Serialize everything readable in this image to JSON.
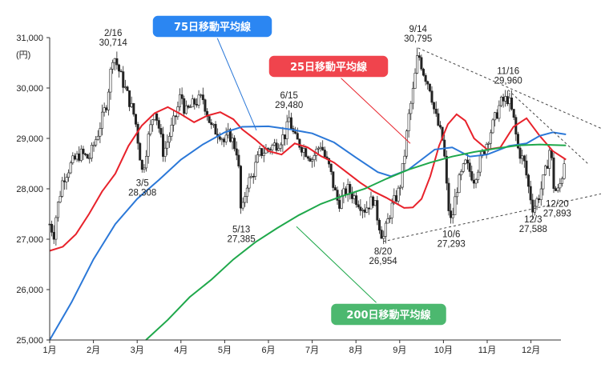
{
  "chart_data": {
    "type": "line",
    "unit_label": "(円)",
    "y_ticks": [
      "31,000",
      "30,000",
      "29,000",
      "28,000",
      "27,000",
      "26,000",
      "25,000"
    ],
    "ylim": [
      25000,
      31000
    ],
    "x_ticks": [
      "1月",
      "2月",
      "3月",
      "4月",
      "5月",
      "6月",
      "7月",
      "8月",
      "9月",
      "10月",
      "11月",
      "12月"
    ],
    "grid": false,
    "series": [
      {
        "name": "25日移動平均線",
        "color": "#e8222b",
        "values": [
          [
            0,
            26770
          ],
          [
            0.3,
            26850
          ],
          [
            0.6,
            27100
          ],
          [
            0.9,
            27500
          ],
          [
            1.2,
            27950
          ],
          [
            1.5,
            28300
          ],
          [
            1.8,
            28850
          ],
          [
            2.1,
            29250
          ],
          [
            2.4,
            29500
          ],
          [
            2.7,
            29620
          ],
          [
            3.0,
            29480
          ],
          [
            3.3,
            29320
          ],
          [
            3.6,
            29450
          ],
          [
            3.9,
            29520
          ],
          [
            4.2,
            29380
          ],
          [
            4.4,
            29180
          ],
          [
            4.7,
            28980
          ],
          [
            5.0,
            28750
          ],
          [
            5.3,
            28680
          ],
          [
            5.6,
            28900
          ],
          [
            5.9,
            28820
          ],
          [
            6.2,
            28650
          ],
          [
            6.5,
            28520
          ],
          [
            6.8,
            28320
          ],
          [
            7.1,
            28120
          ],
          [
            7.4,
            27950
          ],
          [
            7.7,
            27820
          ],
          [
            7.9,
            27720
          ],
          [
            8.1,
            27620
          ],
          [
            8.3,
            27630
          ],
          [
            8.5,
            27800
          ],
          [
            8.7,
            28250
          ],
          [
            8.9,
            28850
          ],
          [
            9.1,
            29280
          ],
          [
            9.3,
            29480
          ],
          [
            9.5,
            29350
          ],
          [
            9.7,
            29000
          ],
          [
            10.0,
            28780
          ],
          [
            10.3,
            28820
          ],
          [
            10.6,
            29230
          ],
          [
            10.9,
            29400
          ],
          [
            11.2,
            29050
          ],
          [
            11.5,
            28750
          ],
          [
            11.8,
            28580
          ]
        ]
      },
      {
        "name": "75日移動平均線",
        "color": "#2b78d8",
        "values": [
          [
            0,
            25000
          ],
          [
            0.5,
            25750
          ],
          [
            1.0,
            26600
          ],
          [
            1.5,
            27300
          ],
          [
            2.0,
            27800
          ],
          [
            2.5,
            28180
          ],
          [
            3.0,
            28580
          ],
          [
            3.5,
            28880
          ],
          [
            4.0,
            29120
          ],
          [
            4.4,
            29230
          ],
          [
            5.0,
            29240
          ],
          [
            5.5,
            29180
          ],
          [
            6.0,
            29100
          ],
          [
            6.5,
            28920
          ],
          [
            7.0,
            28620
          ],
          [
            7.5,
            28330
          ],
          [
            7.8,
            28250
          ],
          [
            8.2,
            28380
          ],
          [
            8.5,
            28580
          ],
          [
            8.8,
            28780
          ],
          [
            9.2,
            28820
          ],
          [
            9.6,
            28640
          ],
          [
            10.0,
            28680
          ],
          [
            10.5,
            28850
          ],
          [
            10.9,
            28900
          ],
          [
            11.2,
            29050
          ],
          [
            11.5,
            29120
          ],
          [
            11.8,
            29080
          ]
        ]
      },
      {
        "name": "200日移動平均線",
        "color": "#1fa84b",
        "values": [
          [
            2.2,
            25000
          ],
          [
            2.7,
            25400
          ],
          [
            3.2,
            25850
          ],
          [
            3.7,
            26200
          ],
          [
            4.2,
            26600
          ],
          [
            4.7,
            26940
          ],
          [
            5.2,
            27220
          ],
          [
            5.7,
            27480
          ],
          [
            6.2,
            27700
          ],
          [
            6.7,
            27860
          ],
          [
            7.2,
            28000
          ],
          [
            7.7,
            28200
          ],
          [
            8.2,
            28380
          ],
          [
            8.7,
            28520
          ],
          [
            9.2,
            28640
          ],
          [
            9.7,
            28730
          ],
          [
            10.2,
            28800
          ],
          [
            10.7,
            28860
          ],
          [
            11.2,
            28880
          ],
          [
            11.5,
            28870
          ],
          [
            11.8,
            28860
          ]
        ]
      }
    ],
    "annotations": [
      {
        "date": "2/16",
        "value": "30,714",
        "x": 1.45,
        "y": 30714
      },
      {
        "date": "3/5",
        "value": "28,308",
        "x": 2.12,
        "y": 28308
      },
      {
        "date": "5/13",
        "value": "27,385",
        "x": 4.38,
        "y": 27385
      },
      {
        "date": "6/15",
        "value": "29,480",
        "x": 5.47,
        "y": 29480
      },
      {
        "date": "8/20",
        "value": "26,954",
        "x": 7.62,
        "y": 26954
      },
      {
        "date": "9/14",
        "value": "30,795",
        "x": 8.42,
        "y": 30795
      },
      {
        "date": "10/6",
        "value": "27,293",
        "x": 9.18,
        "y": 27293
      },
      {
        "date": "11/16",
        "value": "29,960",
        "x": 10.48,
        "y": 29960
      },
      {
        "date": "12/3",
        "value": "27,588",
        "x": 11.05,
        "y": 27588
      },
      {
        "date": "12/20",
        "value": "27,893",
        "x": 11.6,
        "y": 27893
      }
    ],
    "price_path": [
      [
        0,
        27300
      ],
      [
        0.1,
        27100
      ],
      [
        0.15,
        27500
      ],
      [
        0.3,
        28200
      ],
      [
        0.5,
        28500
      ],
      [
        0.7,
        28700
      ],
      [
        0.9,
        28600
      ],
      [
        1.1,
        29100
      ],
      [
        1.3,
        29700
      ],
      [
        1.45,
        30700
      ],
      [
        1.6,
        30300
      ],
      [
        1.8,
        29800
      ],
      [
        1.95,
        29400
      ],
      [
        2.12,
        28300
      ],
      [
        2.25,
        29000
      ],
      [
        2.4,
        29600
      ],
      [
        2.5,
        29200
      ],
      [
        2.6,
        28700
      ],
      [
        2.75,
        29100
      ],
      [
        2.9,
        29500
      ],
      [
        3.0,
        29900
      ],
      [
        3.1,
        29500
      ],
      [
        3.3,
        29700
      ],
      [
        3.5,
        29800
      ],
      [
        3.7,
        29200
      ],
      [
        3.9,
        29100
      ],
      [
        4.0,
        28900
      ],
      [
        4.1,
        29100
      ],
      [
        4.3,
        28700
      ],
      [
        4.38,
        27400
      ],
      [
        4.5,
        28100
      ],
      [
        4.6,
        28200
      ],
      [
        4.8,
        28700
      ],
      [
        5.0,
        28800
      ],
      [
        5.2,
        28900
      ],
      [
        5.4,
        29100
      ],
      [
        5.47,
        29400
      ],
      [
        5.6,
        29000
      ],
      [
        5.8,
        28800
      ],
      [
        6.0,
        28600
      ],
      [
        6.2,
        28900
      ],
      [
        6.3,
        28600
      ],
      [
        6.4,
        28400
      ],
      [
        6.5,
        28000
      ],
      [
        6.6,
        27700
      ],
      [
        6.8,
        28000
      ],
      [
        7.0,
        27800
      ],
      [
        7.2,
        27600
      ],
      [
        7.4,
        27800
      ],
      [
        7.5,
        27400
      ],
      [
        7.62,
        27000
      ],
      [
        7.8,
        27600
      ],
      [
        8.0,
        28000
      ],
      [
        8.1,
        28600
      ],
      [
        8.2,
        29400
      ],
      [
        8.3,
        29900
      ],
      [
        8.42,
        30700
      ],
      [
        8.55,
        30300
      ],
      [
        8.7,
        30000
      ],
      [
        8.8,
        29500
      ],
      [
        9.0,
        28900
      ],
      [
        9.1,
        27700
      ],
      [
        9.18,
        27300
      ],
      [
        9.3,
        28000
      ],
      [
        9.5,
        28500
      ],
      [
        9.7,
        28200
      ],
      [
        9.9,
        28700
      ],
      [
        10.1,
        29200
      ],
      [
        10.3,
        29700
      ],
      [
        10.48,
        29800
      ],
      [
        10.6,
        29400
      ],
      [
        10.7,
        28800
      ],
      [
        10.85,
        28500
      ],
      [
        10.95,
        28000
      ],
      [
        11.05,
        27600
      ],
      [
        11.2,
        27900
      ],
      [
        11.35,
        28400
      ],
      [
        11.45,
        28900
      ],
      [
        11.5,
        28100
      ],
      [
        11.6,
        27900
      ],
      [
        11.7,
        28200
      ],
      [
        11.8,
        28800
      ]
    ],
    "trendlines": [
      {
        "from": [
          8.42,
          30795
        ],
        "to": [
          12.6,
          29200
        ],
        "style": "dashed"
      },
      {
        "from": [
          7.62,
          26954
        ],
        "to": [
          12.6,
          27900
        ],
        "style": "dashed"
      },
      {
        "from": [
          10.48,
          29960
        ],
        "to": [
          12.3,
          28500
        ],
        "style": "dashed"
      }
    ],
    "legend_labels": [
      {
        "text": "75日移動平均線",
        "fill": "#2b86f2",
        "series": 1
      },
      {
        "text": "25日移動平均線",
        "fill": "#f0444d",
        "series": 0
      },
      {
        "text": "200日移動平均線",
        "fill": "#4cb86f",
        "series": 2
      }
    ]
  }
}
